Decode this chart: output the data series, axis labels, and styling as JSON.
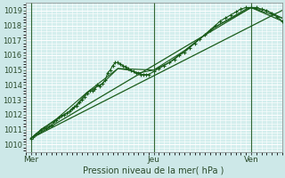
{
  "xlabel": "Pression niveau de la mer( hPa )",
  "bg_color": "#cde8e8",
  "plot_bg_color": "#d4eeed",
  "grid_color": "#ffffff",
  "line_color": "#1a5c1a",
  "marker_color": "#1a5c1a",
  "vline_color": "#336633",
  "ylim": [
    1009.5,
    1019.5
  ],
  "xlim": [
    0,
    100
  ],
  "yticks": [
    1010,
    1011,
    1012,
    1013,
    1014,
    1015,
    1016,
    1017,
    1018,
    1019
  ],
  "xtick_positions": [
    2,
    50,
    88
  ],
  "xtick_labels": [
    "Mer",
    "Jeu",
    "Ven"
  ],
  "vlines": [
    2,
    50,
    88
  ],
  "series1_x": [
    2,
    3,
    4,
    5,
    6,
    7,
    8,
    9,
    10,
    11,
    12,
    13,
    14,
    15,
    16,
    17,
    18,
    19,
    20,
    21,
    22,
    23,
    24,
    25,
    26,
    27,
    28,
    29,
    30,
    31,
    32,
    33,
    34,
    35,
    36,
    37,
    38,
    39,
    40,
    41,
    42,
    43,
    44,
    45,
    46,
    47,
    48,
    50,
    52,
    54,
    56,
    58,
    60,
    62,
    64,
    66,
    68,
    70,
    72,
    74,
    76,
    78,
    80,
    82,
    84,
    86,
    88,
    90,
    92,
    94,
    96,
    98,
    100
  ],
  "series1_y": [
    1010.4,
    1010.5,
    1010.7,
    1010.8,
    1011.0,
    1011.1,
    1011.1,
    1011.2,
    1011.3,
    1011.5,
    1011.6,
    1011.8,
    1011.9,
    1012.0,
    1012.1,
    1012.2,
    1012.4,
    1012.5,
    1012.6,
    1012.8,
    1013.0,
    1013.2,
    1013.4,
    1013.6,
    1013.6,
    1013.7,
    1014.0,
    1013.9,
    1014.1,
    1014.3,
    1014.8,
    1015.0,
    1015.3,
    1015.5,
    1015.5,
    1015.4,
    1015.3,
    1015.2,
    1015.1,
    1015.0,
    1014.9,
    1014.8,
    1014.8,
    1014.7,
    1014.7,
    1014.7,
    1014.7,
    1014.9,
    1015.1,
    1015.3,
    1015.5,
    1015.7,
    1016.0,
    1016.2,
    1016.5,
    1016.8,
    1017.1,
    1017.4,
    1017.7,
    1018.0,
    1018.3,
    1018.5,
    1018.7,
    1018.9,
    1019.1,
    1019.2,
    1019.2,
    1019.2,
    1019.1,
    1019.0,
    1018.8,
    1018.6,
    1018.3
  ],
  "series2_x": [
    2,
    6,
    12,
    18,
    24,
    30,
    36,
    40,
    44,
    50,
    56,
    62,
    68,
    74,
    80,
    86,
    88,
    94,
    100
  ],
  "series2_y": [
    1010.4,
    1011.0,
    1011.7,
    1012.3,
    1013.5,
    1014.1,
    1015.1,
    1015.0,
    1014.8,
    1015.0,
    1015.5,
    1016.3,
    1017.1,
    1017.9,
    1018.5,
    1019.1,
    1019.2,
    1019.0,
    1018.5
  ],
  "series3_x": [
    2,
    12,
    24,
    36,
    50,
    62,
    74,
    88,
    100
  ],
  "series3_y": [
    1010.4,
    1011.7,
    1013.5,
    1015.1,
    1015.0,
    1016.3,
    1017.9,
    1019.2,
    1018.5
  ],
  "trend_x": [
    2,
    100
  ],
  "trend_y": [
    1010.4,
    1019.0
  ],
  "trend2_x": [
    2,
    88,
    100
  ],
  "trend2_y": [
    1010.4,
    1019.2,
    1018.3
  ]
}
